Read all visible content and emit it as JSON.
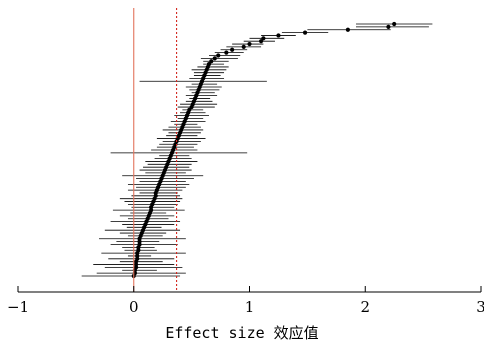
{
  "chart_data": {
    "type": "scatter",
    "subtype": "forest-plot",
    "xlabel": "Effect size 效应值",
    "xlim": [
      -1,
      3
    ],
    "xticks": [
      -1,
      0,
      1,
      2,
      3
    ],
    "xtick_labels": [
      "−1",
      "0",
      "1",
      "2",
      "3"
    ],
    "grid": false,
    "reference_lines": [
      {
        "x": 0,
        "style": "solid",
        "color": "#e2735c"
      },
      {
        "x": 0.37,
        "style": "dotted",
        "color": "#d3261e"
      }
    ],
    "colors": {
      "points": "#000000",
      "intervals": "#000000",
      "axis": "#000000"
    },
    "series": [
      {
        "effects": [
          0.0,
          0.01,
          0.01,
          0.02,
          0.02,
          0.02,
          0.03,
          0.03,
          0.03,
          0.04,
          0.04,
          0.05,
          0.05,
          0.05,
          0.06,
          0.07,
          0.08,
          0.09,
          0.1,
          0.11,
          0.12,
          0.13,
          0.14,
          0.15,
          0.15,
          0.16,
          0.17,
          0.18,
          0.19,
          0.19,
          0.2,
          0.21,
          0.22,
          0.23,
          0.24,
          0.25,
          0.26,
          0.27,
          0.28,
          0.29,
          0.3,
          0.31,
          0.32,
          0.33,
          0.34,
          0.35,
          0.36,
          0.37,
          0.38,
          0.39,
          0.4,
          0.41,
          0.42,
          0.43,
          0.44,
          0.45,
          0.46,
          0.47,
          0.48,
          0.5,
          0.51,
          0.52,
          0.53,
          0.54,
          0.55,
          0.56,
          0.57,
          0.58,
          0.59,
          0.6,
          0.61,
          0.62,
          0.63,
          0.64,
          0.65,
          0.67,
          0.7,
          0.73,
          0.8,
          0.85,
          0.95,
          1.0,
          1.1,
          1.12,
          1.25,
          1.48,
          1.85,
          2.2,
          2.25
        ],
        "ci_low": [
          -0.45,
          -0.32,
          -0.1,
          -0.25,
          -0.35,
          -0.12,
          -0.22,
          -0.05,
          -0.28,
          -0.08,
          -0.1,
          -0.2,
          -0.15,
          -0.3,
          -0.05,
          -0.12,
          -0.25,
          -0.06,
          -0.1,
          -0.2,
          -0.05,
          -0.12,
          -0.03,
          -0.18,
          -0.02,
          -0.05,
          -0.08,
          -0.12,
          -0.02,
          0.05,
          -0.05,
          0.02,
          -0.05,
          0.05,
          0.02,
          -0.1,
          0.1,
          0.05,
          0.08,
          0.12,
          0.1,
          0.18,
          0.22,
          -0.2,
          0.15,
          0.2,
          0.22,
          0.25,
          0.2,
          0.28,
          0.3,
          0.25,
          0.3,
          0.35,
          0.32,
          0.38,
          0.35,
          0.4,
          0.42,
          0.38,
          0.4,
          0.45,
          0.48,
          0.45,
          0.5,
          0.48,
          0.45,
          0.5,
          0.05,
          0.48,
          0.52,
          0.52,
          0.5,
          0.55,
          0.6,
          0.6,
          0.58,
          0.65,
          0.7,
          0.75,
          0.8,
          0.85,
          0.95,
          1.0,
          1.1,
          1.28,
          1.5,
          1.92,
          1.92
        ],
        "ci_high": [
          0.4,
          0.45,
          0.2,
          0.42,
          0.35,
          0.25,
          0.35,
          0.15,
          0.45,
          0.2,
          0.18,
          0.38,
          0.22,
          0.45,
          0.25,
          0.28,
          0.4,
          0.24,
          0.35,
          0.4,
          0.3,
          0.35,
          0.28,
          0.44,
          0.35,
          0.38,
          0.4,
          0.42,
          0.4,
          0.38,
          0.42,
          0.45,
          0.48,
          0.45,
          0.52,
          0.6,
          0.45,
          0.5,
          0.48,
          0.5,
          0.55,
          0.5,
          0.48,
          0.98,
          0.55,
          0.52,
          0.55,
          0.58,
          0.62,
          0.55,
          0.58,
          0.6,
          0.58,
          0.55,
          0.62,
          0.6,
          0.65,
          0.62,
          0.6,
          0.7,
          0.72,
          0.68,
          0.66,
          0.72,
          0.7,
          0.74,
          0.76,
          0.72,
          1.15,
          0.78,
          0.75,
          0.78,
          0.8,
          0.82,
          0.78,
          0.82,
          0.9,
          0.92,
          0.95,
          0.98,
          1.1,
          1.12,
          1.22,
          1.3,
          1.4,
          1.68,
          2.22,
          2.55,
          2.58
        ]
      }
    ]
  }
}
